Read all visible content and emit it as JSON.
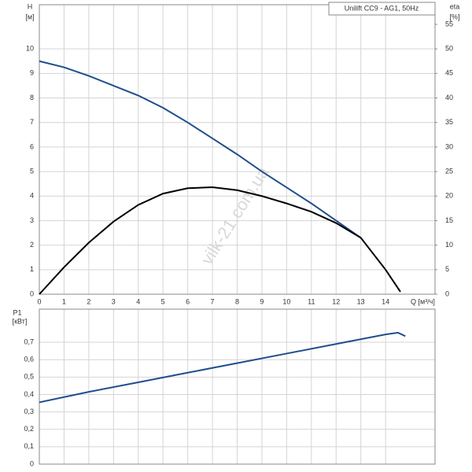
{
  "chart_data": [
    {
      "type": "line",
      "title": "Unilift CC9 - AG1, 50Hz",
      "y_label": "H",
      "y_unit": "[м]",
      "y2_label": "eta",
      "y2_unit": "[%]",
      "x_label": "Q [м³/ч]",
      "watermark": "vilk-21.com.ua",
      "xlim": [
        0,
        16
      ],
      "xticks": [
        0,
        1,
        2,
        3,
        4,
        5,
        6,
        7,
        8,
        9,
        10,
        11,
        12,
        13,
        14
      ],
      "ylim": [
        0,
        11.8
      ],
      "yticks": [
        0,
        1,
        2,
        3,
        4,
        5,
        6,
        7,
        8,
        9,
        10
      ],
      "y2lim": [
        0,
        59
      ],
      "y2ticks": [
        0,
        5,
        10,
        15,
        20,
        25,
        30,
        35,
        40,
        45,
        50,
        55
      ],
      "grid": true,
      "series": [
        {
          "color": "#1f4e8c",
          "x": [
            0,
            1,
            2,
            3,
            4,
            5,
            6,
            7,
            8,
            9,
            10,
            11,
            12,
            13
          ],
          "values": [
            9.5,
            9.25,
            8.9,
            8.5,
            8.1,
            7.6,
            7.0,
            6.35,
            5.7,
            5.0,
            4.35,
            3.7,
            3.0,
            2.3
          ]
        },
        {
          "color": "#000000",
          "axis": "y2",
          "x": [
            0,
            1,
            2,
            3,
            4,
            5,
            6,
            7,
            8,
            9,
            10,
            11,
            12,
            13,
            14,
            14.6
          ],
          "values": [
            0,
            5.5,
            10.5,
            14.8,
            18.2,
            20.5,
            21.6,
            21.8,
            21.2,
            20,
            18.5,
            16.8,
            14.5,
            11.5,
            5,
            0.5
          ]
        }
      ]
    },
    {
      "type": "line",
      "y_label": "P1",
      "y_unit": "[кВт]",
      "xlim": [
        0,
        16
      ],
      "xticks": [
        0,
        1,
        2,
        3,
        4,
        5,
        6,
        7,
        8,
        9,
        10,
        11,
        12,
        13,
        14
      ],
      "ylim": [
        0,
        0.89
      ],
      "yticks": [
        0,
        {
          "value": 0.1,
          "label": "0,1"
        },
        {
          "value": 0.2,
          "label": "0,2"
        },
        {
          "value": 0.3,
          "label": "0,3"
        },
        {
          "value": 0.4,
          "label": "0,4"
        },
        {
          "value": 0.5,
          "label": "0,5"
        },
        {
          "value": 0.6,
          "label": "0,6"
        },
        {
          "value": 0.7,
          "label": "0,7"
        }
      ],
      "grid": true,
      "series": [
        {
          "color": "#1f4e8c",
          "x": [
            0,
            2,
            4,
            6,
            8,
            10,
            12,
            14,
            14.5,
            14.8
          ],
          "values": [
            0.355,
            0.415,
            0.47,
            0.525,
            0.58,
            0.635,
            0.69,
            0.745,
            0.755,
            0.735
          ]
        }
      ]
    }
  ]
}
